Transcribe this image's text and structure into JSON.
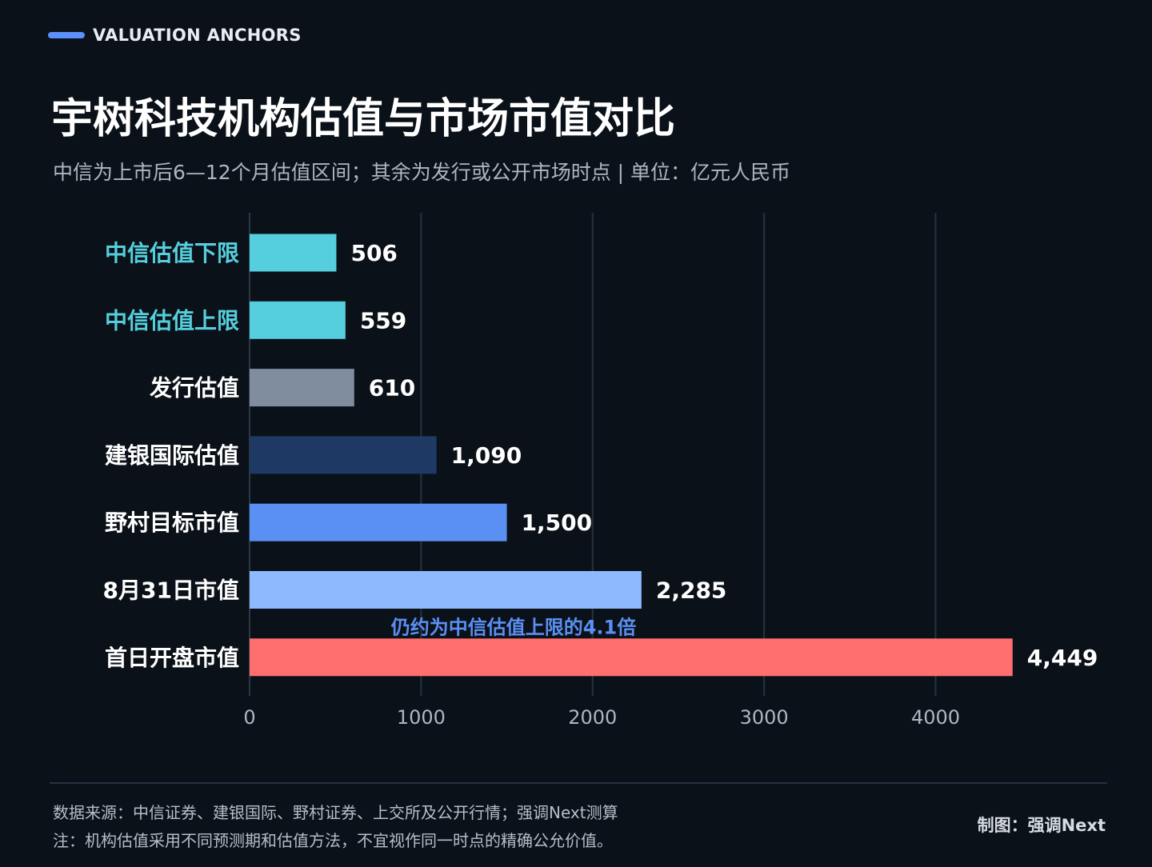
{
  "header": {
    "kicker": "VALUATION ANCHORS",
    "title": "宇树科技机构估值与市场市值对比",
    "subtitle": "中信为上市后6—12个月估值区间；其余为发行或公开市场时点 | 单位：亿元人民币"
  },
  "chart_data": {
    "type": "bar",
    "orientation": "horizontal",
    "categories": [
      "中信估值下限",
      "中信估值上限",
      "发行估值",
      "建银国际估值",
      "野村目标市值",
      "8月31日市值",
      "首日开盘市值"
    ],
    "values": [
      506,
      559,
      610,
      1090,
      1500,
      2285,
      4449
    ],
    "value_labels": [
      "506",
      "559",
      "610",
      "1,090",
      "1,500",
      "2,285",
      "4,449"
    ],
    "bar_colors": [
      "#55cfdd",
      "#55cfdd",
      "#7f8d9e",
      "#1e3a64",
      "#5a8ff3",
      "#8fb9ff",
      "#ff6f6f"
    ],
    "category_label_colors": [
      "#55cfdd",
      "#55cfdd",
      "#ffffff",
      "#ffffff",
      "#ffffff",
      "#ffffff",
      "#ffffff"
    ],
    "xlim": [
      0,
      4450
    ],
    "x_ticks": [
      0,
      1000,
      2000,
      3000,
      4000
    ],
    "grid": "vertical",
    "annotation": {
      "text": "仍约为中信估值上限的4.1倍",
      "attached_to": "首日开盘市值",
      "color": "#5a8ff3"
    }
  },
  "footer": {
    "source": "数据来源：中信证券、建银国际、野村证券、上交所及公开行情；强调Next测算",
    "note": "注：机构估值采用不同预测期和估值方法，不宜视作同一时点的精确公允价值。",
    "credit": "制图：强调Next"
  }
}
